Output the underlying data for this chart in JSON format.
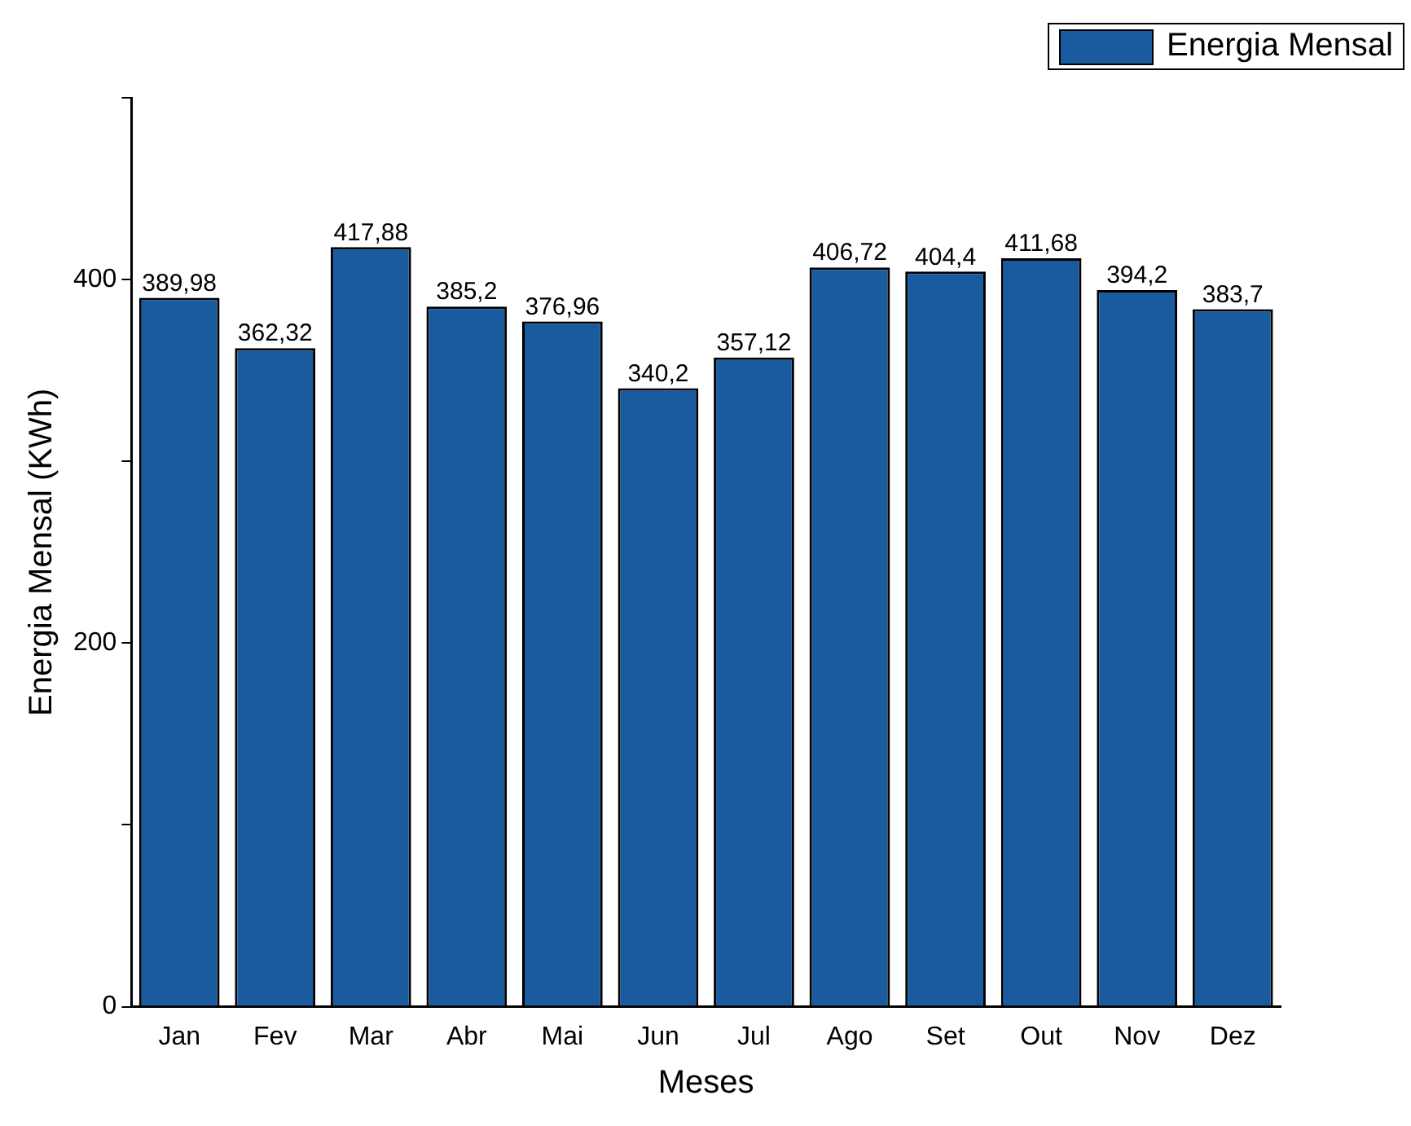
{
  "chart_data": {
    "type": "bar",
    "xlabel": "Meses",
    "ylabel": "Energia Mensal (KWh)",
    "categories": [
      "Jan",
      "Fev",
      "Mar",
      "Abr",
      "Mai",
      "Jun",
      "Jul",
      "Ago",
      "Set",
      "Out",
      "Nov",
      "Dez"
    ],
    "series": [
      {
        "name": "Energia Mensal",
        "color": "#1a5a9e",
        "values": [
          389.98,
          362.32,
          417.88,
          385.2,
          376.96,
          340.2,
          357.12,
          406.72,
          404.4,
          411.68,
          394.2,
          383.7
        ],
        "value_labels": [
          "389,98",
          "362,32",
          "417,88",
          "385,2",
          "376,96",
          "340,2",
          "357,12",
          "406,72",
          "404,4",
          "411,68",
          "394,2",
          "383,7"
        ]
      }
    ],
    "ylim": [
      0,
      500
    ],
    "yticks": [
      0,
      {
        "value": 100,
        "label": null
      },
      200,
      {
        "value": 300,
        "label": null
      },
      400,
      {
        "value": 500,
        "label": null
      }
    ],
    "grid": false,
    "legend": "top right"
  }
}
